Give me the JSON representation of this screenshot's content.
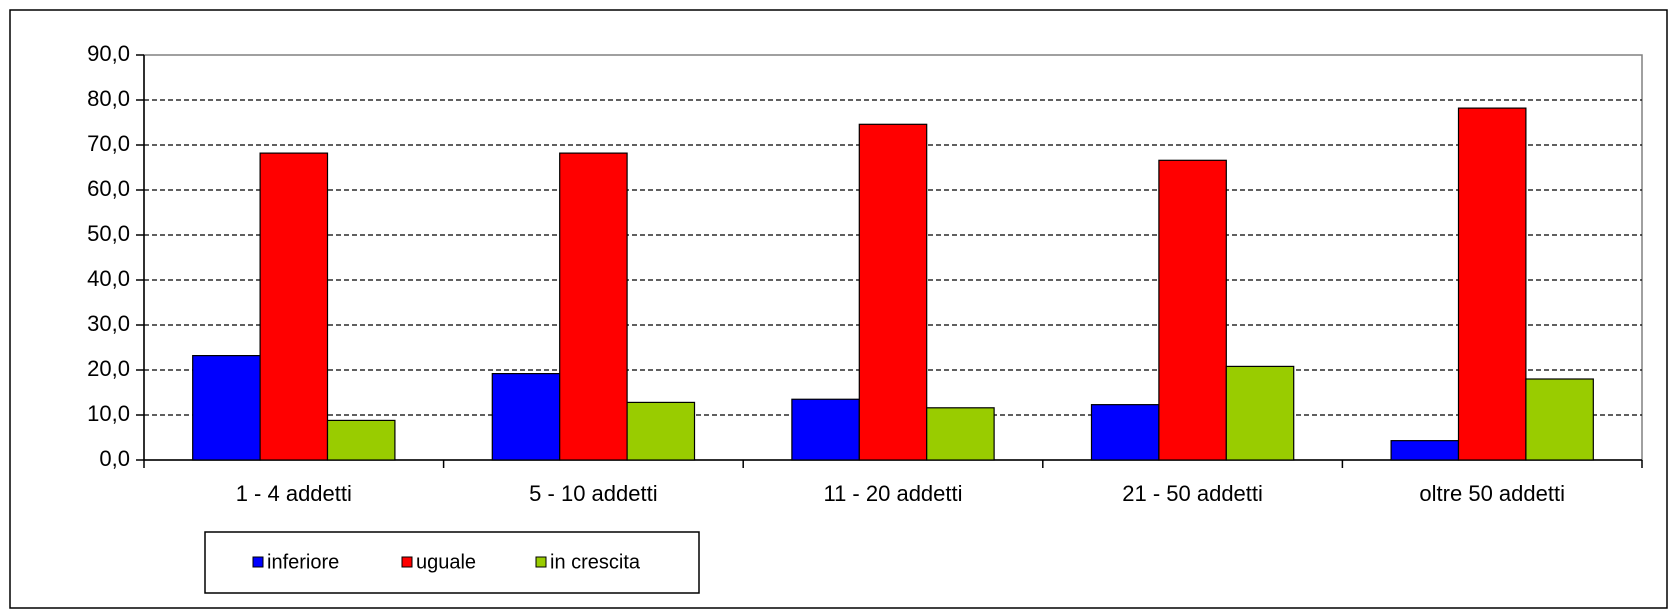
{
  "chart_data": {
    "type": "bar",
    "categories": [
      "1 - 4 addetti",
      "5 - 10 addetti",
      "11 - 20 addetti",
      "21 - 50 addetti",
      "oltre 50 addetti"
    ],
    "series": [
      {
        "name": "inferiore",
        "color": "#0000ff",
        "values": [
          23.2,
          19.2,
          13.5,
          12.3,
          4.3
        ]
      },
      {
        "name": "uguale",
        "color": "#ff0000",
        "values": [
          68.2,
          68.2,
          74.6,
          66.6,
          78.2
        ]
      },
      {
        "name": "in crescita",
        "color": "#99cc00",
        "values": [
          8.8,
          12.8,
          11.6,
          20.8,
          18.0
        ]
      }
    ],
    "ylim": [
      0,
      90
    ],
    "yticks": [
      {
        "value": 0,
        "label": "0,0"
      },
      {
        "value": 10,
        "label": "10,0"
      },
      {
        "value": 20,
        "label": "20,0"
      },
      {
        "value": 30,
        "label": "30,0"
      },
      {
        "value": 40,
        "label": "40,0"
      },
      {
        "value": 50,
        "label": "50,0"
      },
      {
        "value": 60,
        "label": "60,0"
      },
      {
        "value": 70,
        "label": "70,0"
      },
      {
        "value": 80,
        "label": "80,0"
      },
      {
        "value": 90,
        "label": "90,0"
      }
    ],
    "grid": true
  }
}
